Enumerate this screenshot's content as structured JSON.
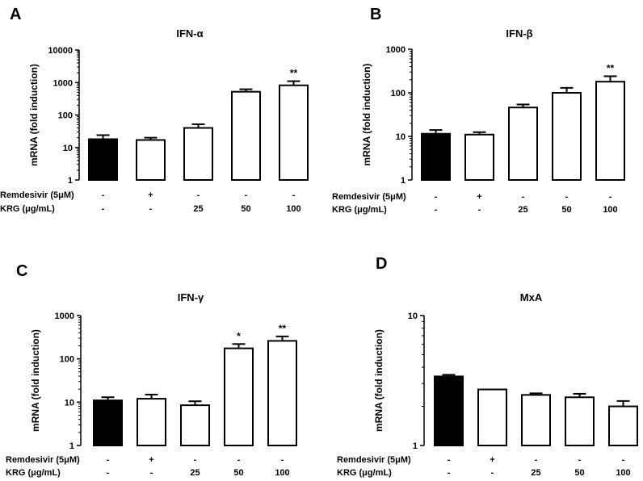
{
  "chart_data": [
    {
      "type": "bar",
      "panel": "A",
      "title": "IFN-α",
      "ylabel": "mRNA (fold induction)",
      "yscale": "log",
      "ylim": [
        1,
        10000
      ],
      "yticks": [
        "1",
        "10",
        "100",
        "1000",
        "10000"
      ],
      "rows": [
        {
          "label": "Remdesivir (5μM)",
          "values": [
            "-",
            "+",
            "-",
            "-",
            "-"
          ]
        },
        {
          "label": "KRG (μg/mL)",
          "values": [
            "-",
            "-",
            "25",
            "50",
            "100"
          ]
        }
      ],
      "values": [
        18,
        17,
        40,
        520,
        820
      ],
      "errors": [
        24,
        20,
        52,
        620,
        1100
      ],
      "fill": [
        "#000000",
        "#ffffff",
        "#ffffff",
        "#ffffff",
        "#ffffff"
      ],
      "significance": [
        "",
        "",
        "",
        "",
        "**"
      ]
    },
    {
      "type": "bar",
      "panel": "B",
      "title": "IFN-β",
      "ylabel": "mRNA (fold induction)",
      "yscale": "log",
      "ylim": [
        1,
        1000
      ],
      "yticks": [
        "1",
        "10",
        "100",
        "1000"
      ],
      "rows": [
        {
          "label": "Remdesivir (5μM)",
          "values": [
            "-",
            "+",
            "-",
            "-",
            "-"
          ]
        },
        {
          "label": "KRG (μg/mL)",
          "values": [
            "-",
            "-",
            "25",
            "50",
            "100"
          ]
        }
      ],
      "values": [
        11.5,
        11,
        46,
        100,
        180
      ],
      "errors": [
        14,
        12.5,
        54,
        130,
        240
      ],
      "fill": [
        "#000000",
        "#ffffff",
        "#ffffff",
        "#ffffff",
        "#ffffff"
      ],
      "significance": [
        "",
        "",
        "",
        "",
        "**"
      ]
    },
    {
      "type": "bar",
      "panel": "C",
      "title": "IFN-γ",
      "ylabel": "mRNA (fold induction)",
      "yscale": "log",
      "ylim": [
        1,
        1000
      ],
      "yticks": [
        "1",
        "10",
        "100",
        "1000"
      ],
      "rows": [
        {
          "label": "Remdesivir (5μM)",
          "values": [
            "-",
            "+",
            "-",
            "-",
            "-"
          ]
        },
        {
          "label": "KRG (μg/mL)",
          "values": [
            "-",
            "-",
            "25",
            "50",
            "100"
          ]
        }
      ],
      "values": [
        11,
        12,
        8.5,
        175,
        260
      ],
      "errors": [
        13,
        15,
        10.5,
        220,
        330
      ],
      "fill": [
        "#000000",
        "#ffffff",
        "#ffffff",
        "#ffffff",
        "#ffffff"
      ],
      "significance": [
        "",
        "",
        "",
        "*",
        "**"
      ]
    },
    {
      "type": "bar",
      "panel": "D",
      "title": "MxA",
      "ylabel": "mRNA (fold induction)",
      "yscale": "log",
      "ylim": [
        1,
        10
      ],
      "yticks": [
        "1",
        "10"
      ],
      "rows": [
        {
          "label": "Remdesivir (5μM)",
          "values": [
            "-",
            "+",
            "-",
            "-",
            "-"
          ]
        },
        {
          "label": "KRG (μg/mL)",
          "values": [
            "-",
            "-",
            "25",
            "50",
            "100"
          ]
        }
      ],
      "values": [
        3.4,
        2.7,
        2.45,
        2.35,
        2.0
      ],
      "errors": [
        3.5,
        2.7,
        2.52,
        2.5,
        2.2
      ],
      "fill": [
        "#000000",
        "#ffffff",
        "#ffffff",
        "#ffffff",
        "#ffffff"
      ],
      "significance": [
        "",
        "",
        "",
        "",
        ""
      ]
    }
  ]
}
